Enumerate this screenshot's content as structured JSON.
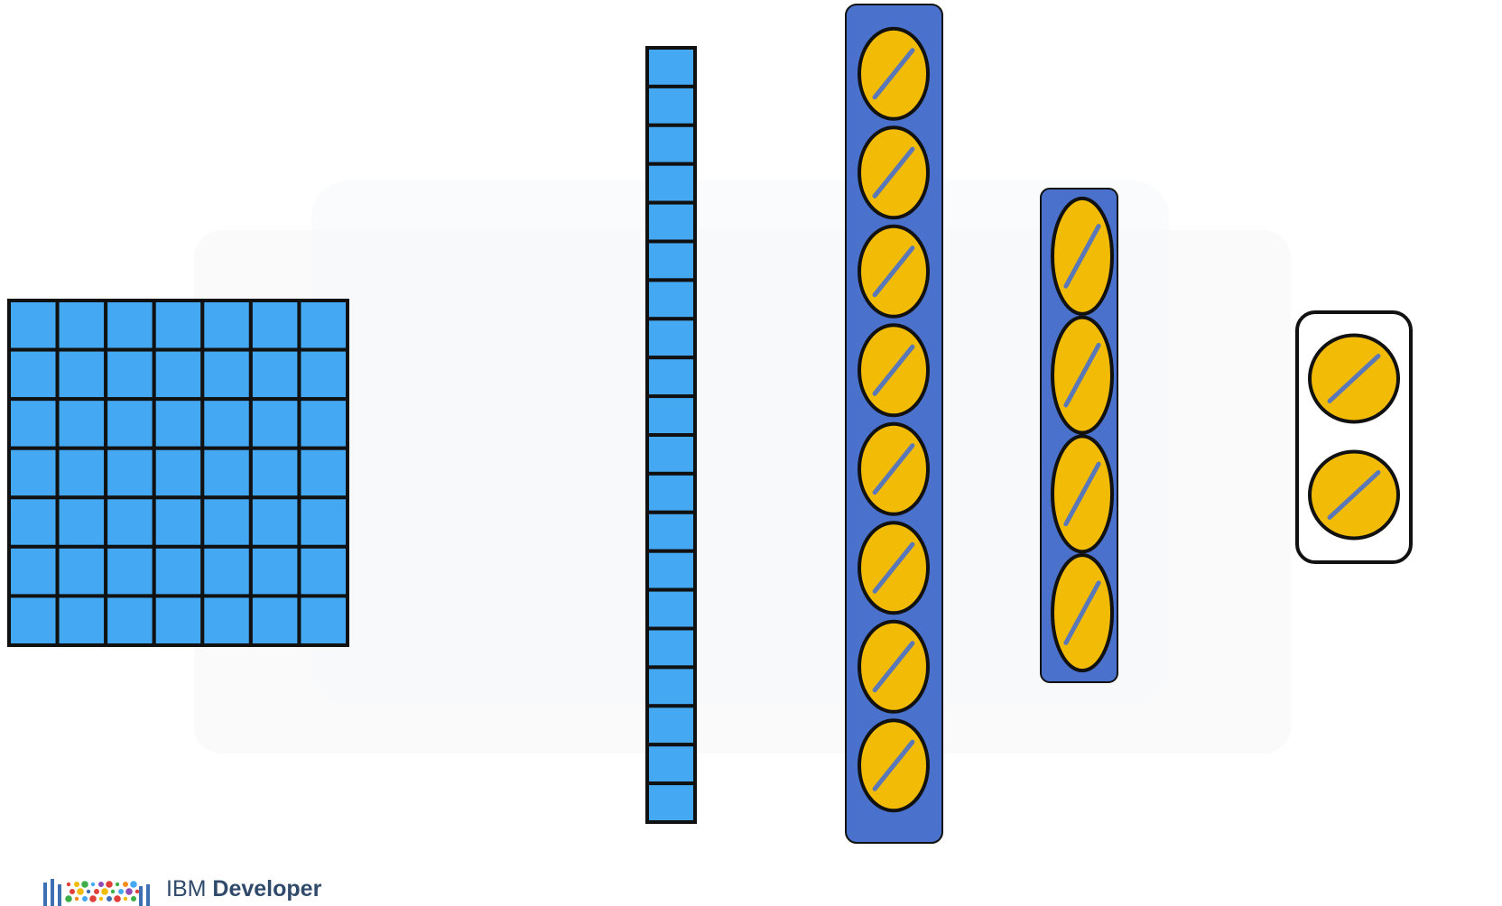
{
  "colors": {
    "background": "#ffffff",
    "ghost": "#f6f7f9",
    "input_cell": "#44a9f2",
    "cell_stroke": "#111111",
    "layer_panel": "#4a72cc",
    "neuron_fill": "#f2bb05",
    "neuron_stroke": "#111111",
    "neuron_slash": "#5a78b8",
    "output_panel_fill": "#ffffff",
    "brand_text": "#2f4a6b"
  },
  "diagram": {
    "input_image": {
      "rows": 7,
      "cols": 7
    },
    "flattened_vector": {
      "cells": 20
    },
    "hidden_layer_1": {
      "neurons": 8
    },
    "hidden_layer_2": {
      "neurons": 4
    },
    "output_layer": {
      "neurons": 2
    },
    "neuron_icon": "linear-activation-slash-icon"
  },
  "brand": {
    "logo_icon": "ibm-developer-dots-logo-icon",
    "prefix": "IBM",
    "name": "Developer"
  }
}
